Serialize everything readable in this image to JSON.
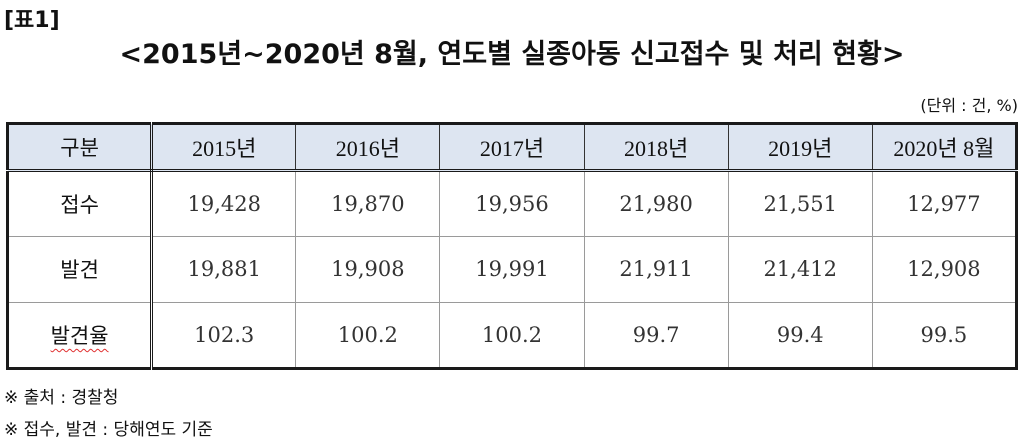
{
  "table_label": "[표1]",
  "title": "<2015년~2020년 8월, 연도별 실종아동 신고접수 및 처리 현황>",
  "unit": "(단위 : 건, %)",
  "table": {
    "headers": [
      "구분",
      "2015년",
      "2016년",
      "2017년",
      "2018년",
      "2019년",
      "2020년 8월"
    ],
    "rows": [
      {
        "label": "접수",
        "values": [
          "19,428",
          "19,870",
          "19,956",
          "21,980",
          "21,551",
          "12,977"
        ]
      },
      {
        "label": "발견",
        "values": [
          "19,881",
          "19,908",
          "19,991",
          "21,911",
          "21,412",
          "12,908"
        ]
      },
      {
        "label": "발견율",
        "values": [
          "102.3",
          "100.2",
          "100.2",
          "99.7",
          "99.4",
          "99.5"
        ]
      }
    ]
  },
  "notes": [
    "※ 출처 : 경찰청",
    "※ 접수, 발견 : 당해연도 기준"
  ]
}
